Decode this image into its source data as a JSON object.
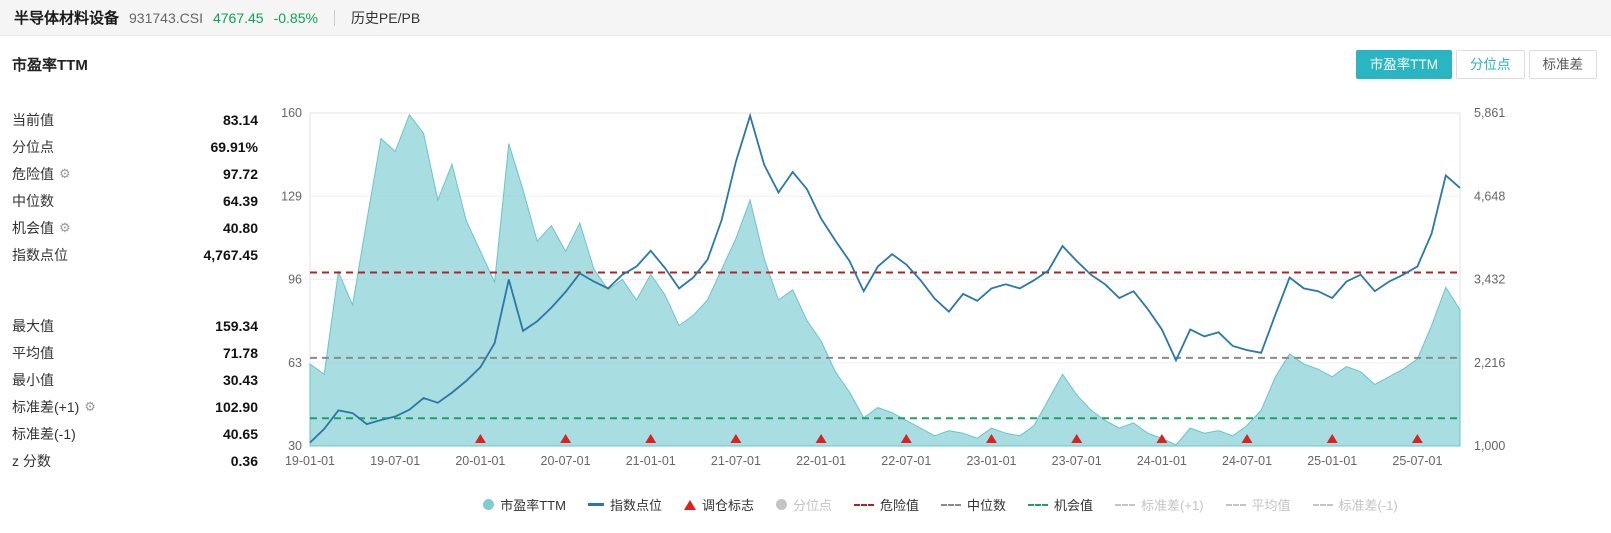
{
  "header": {
    "title": "半导体材料设备",
    "code": "931743.CSI",
    "price": "4767.45",
    "change": "-0.85%",
    "nav_item": "历史PE/PB"
  },
  "colors": {
    "accent_teal": "#2ab5c2",
    "price_green": "#0aa554",
    "area_fill": "#8fd3d8",
    "area_stroke": "#69c5cb",
    "index_line": "#2878a8",
    "danger_line": "#b22222",
    "median_line": "#8a8a8a",
    "chance_line": "#1fa35c",
    "triangle_red": "#e01f1f",
    "muted": "#c4c4c4"
  },
  "section": {
    "title": "市盈率TTM",
    "tabs": [
      {
        "key": "pe-ttm",
        "label": "市盈率TTM",
        "active": true,
        "style": "active"
      },
      {
        "key": "percentile",
        "label": "分位点",
        "active": false,
        "style": "teal-text"
      },
      {
        "key": "std-dev",
        "label": "标准差",
        "active": false,
        "style": ""
      }
    ]
  },
  "stats": {
    "primary": [
      {
        "key": "current-value",
        "label": "当前值",
        "value": "83.14",
        "gear": false
      },
      {
        "key": "percentile",
        "label": "分位点",
        "value": "69.91%",
        "gear": false
      },
      {
        "key": "danger-value",
        "label": "危险值",
        "value": "97.72",
        "gear": true
      },
      {
        "key": "median",
        "label": "中位数",
        "value": "64.39",
        "gear": false
      },
      {
        "key": "chance-value",
        "label": "机会值",
        "value": "40.80",
        "gear": true
      },
      {
        "key": "index-level",
        "label": "指数点位",
        "value": "4,767.45",
        "gear": false
      }
    ],
    "secondary": [
      {
        "key": "max-value",
        "label": "最大值",
        "value": "159.34",
        "gear": false
      },
      {
        "key": "mean-value",
        "label": "平均值",
        "value": "71.78",
        "gear": false
      },
      {
        "key": "min-value",
        "label": "最小值",
        "value": "30.43",
        "gear": false
      },
      {
        "key": "std-plus1",
        "label": "标准差(+1)",
        "value": "102.90",
        "gear": true
      },
      {
        "key": "std-minus1",
        "label": "标准差(-1)",
        "value": "40.65",
        "gear": false
      },
      {
        "key": "z-score",
        "label": "z 分数",
        "value": "0.36",
        "gear": false
      }
    ]
  },
  "chart_data": {
    "type": "area",
    "title": "市盈率TTM 历史走势",
    "x_start": "2019-01",
    "x_interval": "monthly",
    "x_tick_labels": [
      "19-01-01",
      "19-07-01",
      "20-01-01",
      "20-07-01",
      "21-01-01",
      "21-07-01",
      "22-01-01",
      "22-07-01",
      "23-01-01",
      "23-07-01",
      "24-01-01",
      "24-07-01",
      "25-01-01",
      "25-07-01"
    ],
    "x_tick_month_index": [
      0,
      6,
      12,
      18,
      24,
      30,
      36,
      42,
      48,
      54,
      60,
      66,
      72,
      78
    ],
    "left_axis": {
      "label": "市盈率TTM",
      "min": 30,
      "max": 160,
      "tick_labels": [
        "160",
        "129",
        "96",
        "63",
        "30"
      ]
    },
    "right_axis": {
      "label": "指数点位",
      "min": 1000,
      "max": 5861,
      "tick_labels": [
        "5,861",
        "4,648",
        "3,432",
        "2,216",
        "1,000"
      ]
    },
    "series": [
      {
        "name": "市盈率TTM",
        "type": "area",
        "axis": "left",
        "values": [
          62,
          58,
          98,
          85,
          118,
          150,
          145,
          159.3,
          152,
          126,
          140,
          118,
          106,
          94,
          148,
          130,
          110,
          116,
          106,
          117,
          99,
          91,
          95,
          87,
          97,
          89,
          77,
          81,
          87,
          99,
          111,
          126,
          103,
          87,
          91,
          79,
          71,
          59,
          51,
          41,
          45,
          43,
          40,
          37,
          34,
          36,
          35,
          33,
          37,
          35,
          34,
          38,
          48,
          58,
          50,
          44,
          40,
          37,
          39,
          35,
          33,
          30.4,
          37,
          35,
          36,
          34,
          38,
          44,
          57,
          66,
          62,
          60,
          57,
          61,
          59,
          54,
          57,
          60,
          64,
          77,
          92,
          83.14
        ]
      },
      {
        "name": "指数点位",
        "type": "line",
        "axis": "right",
        "values": [
          1050,
          1250,
          1520,
          1480,
          1320,
          1380,
          1430,
          1530,
          1700,
          1630,
          1780,
          1950,
          2150,
          2500,
          3430,
          2680,
          2820,
          3020,
          3250,
          3520,
          3400,
          3300,
          3500,
          3620,
          3850,
          3600,
          3300,
          3460,
          3720,
          4300,
          5150,
          5820,
          5100,
          4700,
          5000,
          4750,
          4320,
          4000,
          3700,
          3260,
          3620,
          3800,
          3650,
          3420,
          3150,
          2960,
          3220,
          3120,
          3300,
          3360,
          3300,
          3420,
          3560,
          3920,
          3700,
          3500,
          3360,
          3160,
          3260,
          3000,
          2700,
          2250,
          2700,
          2600,
          2660,
          2460,
          2400,
          2360,
          2920,
          3460,
          3300,
          3260,
          3160,
          3400,
          3500,
          3260,
          3400,
          3500,
          3620,
          4100,
          4950,
          4767.45
        ]
      }
    ],
    "reference_lines": [
      {
        "name": "危险值",
        "value": 97.72,
        "axis": "left",
        "color_key": "danger_line"
      },
      {
        "name": "中位数",
        "value": 64.39,
        "axis": "left",
        "color_key": "median_line"
      },
      {
        "name": "机会值",
        "value": 40.8,
        "axis": "left",
        "color_key": "chance_line"
      }
    ],
    "rebalance_marker_month_index": [
      12,
      18,
      24,
      30,
      36,
      42,
      48,
      54,
      60,
      66,
      72,
      78
    ],
    "grid": true,
    "legend_position": "bottom"
  },
  "legend": [
    {
      "key": "pe-ttm",
      "label": "市盈率TTM",
      "marker": "circle",
      "color": "#7fcdd3",
      "muted": false
    },
    {
      "key": "index-level",
      "label": "指数点位",
      "marker": "line",
      "color": "#2878a8",
      "muted": false
    },
    {
      "key": "rebalance-flag",
      "label": "调仓标志",
      "marker": "triangle",
      "color": "#e01f1f",
      "muted": false
    },
    {
      "key": "percentile",
      "label": "分位点",
      "marker": "circle",
      "color": "#c4c4c4",
      "muted": true
    },
    {
      "key": "danger-value",
      "label": "危险值",
      "marker": "dash",
      "color": "#b22222",
      "muted": false
    },
    {
      "key": "median",
      "label": "中位数",
      "marker": "dash",
      "color": "#8a8a8a",
      "muted": false
    },
    {
      "key": "chance-value",
      "label": "机会值",
      "marker": "dash",
      "color": "#1fa35c",
      "muted": false
    },
    {
      "key": "std-plus1",
      "label": "标准差(+1)",
      "marker": "dash",
      "color": "#c4c4c4",
      "muted": true
    },
    {
      "key": "mean-value",
      "label": "平均值",
      "marker": "dash",
      "color": "#c4c4c4",
      "muted": true
    },
    {
      "key": "std-minus1",
      "label": "标准差(-1)",
      "marker": "dash",
      "color": "#c4c4c4",
      "muted": true
    }
  ]
}
